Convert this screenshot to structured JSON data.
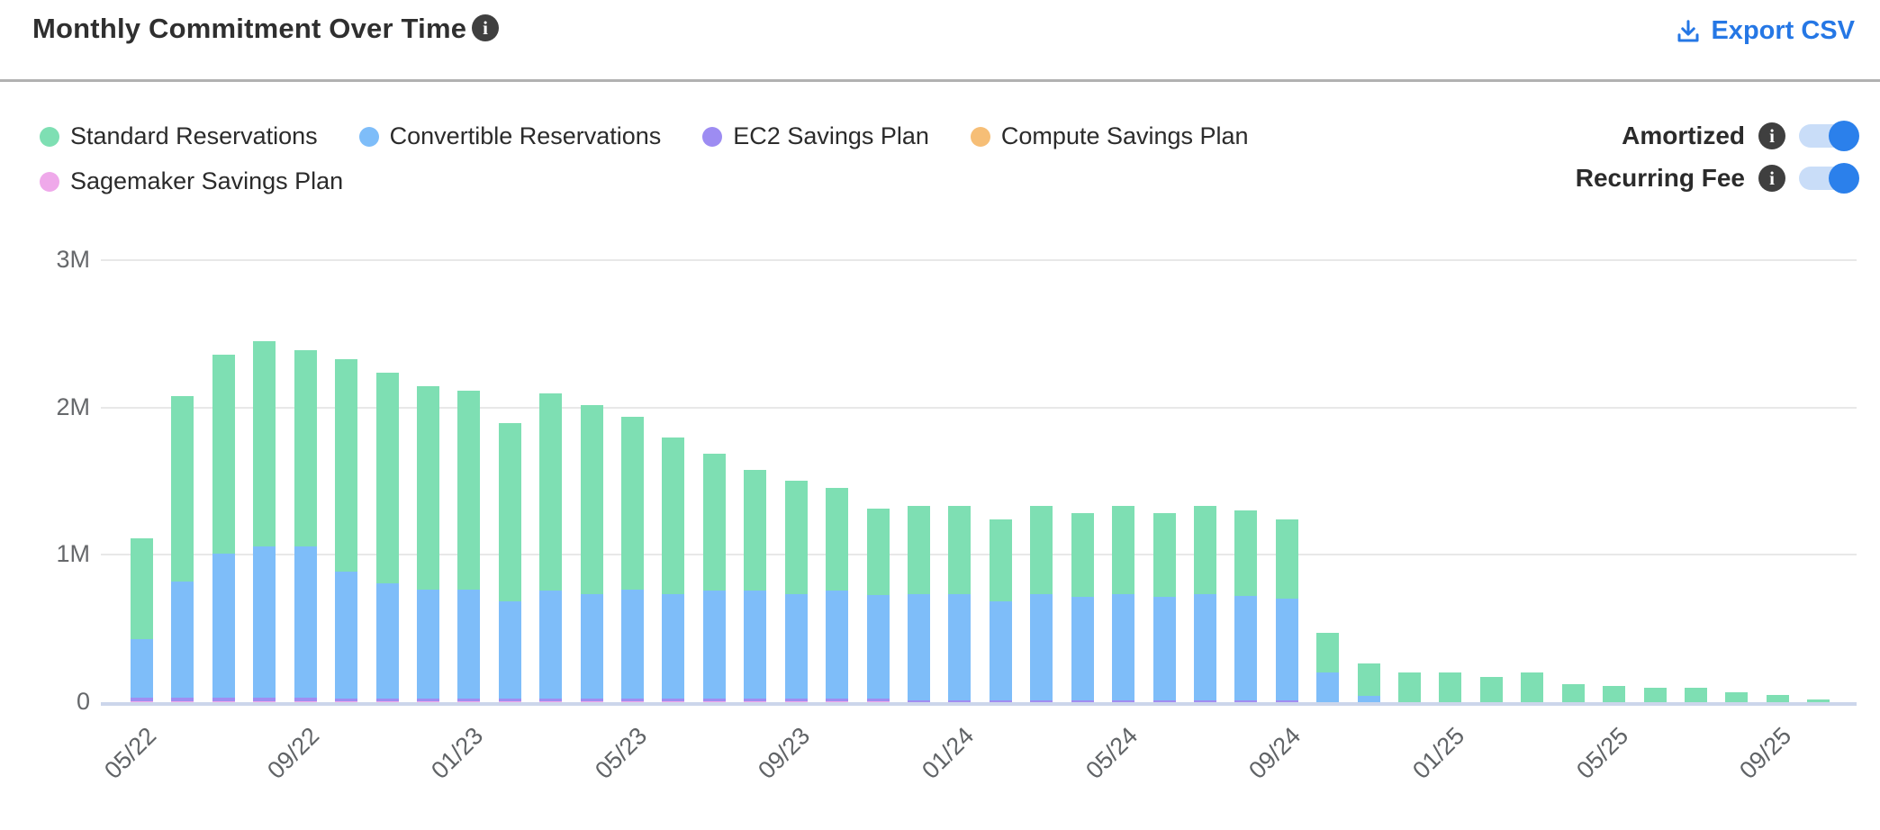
{
  "header": {
    "title": "Monthly Commitment Over Time",
    "info_icon_glyph": "i",
    "export_label": "Export CSV"
  },
  "toggles": [
    {
      "label": "Amortized",
      "state": "on"
    },
    {
      "label": "Recurring Fee",
      "state": "on"
    }
  ],
  "colors": {
    "standard": "#7EDFB3",
    "convertible": "#7EBDF9",
    "ec2": "#A08DF1",
    "compute": "#F6BE76",
    "sagemaker": "#EFA9EA",
    "accent_blue": "#2577E5",
    "gridline": "#E8E8E8",
    "axis_line": "#CCD6EB",
    "axis_text": "#66686B"
  },
  "legend": {
    "items": [
      {
        "key": "standard",
        "label": "Standard Reservations",
        "color": "#7EDFB3",
        "row": 1
      },
      {
        "key": "convertible",
        "label": "Convertible Reservations",
        "color": "#7EBDF9",
        "row": 1
      },
      {
        "key": "ec2",
        "label": "EC2 Savings Plan",
        "color": "#9D8CF2",
        "row": 1
      },
      {
        "key": "compute",
        "label": "Compute Savings Plan",
        "color": "#F6BE76",
        "row": 1
      },
      {
        "key": "sagemaker",
        "label": "Sagemaker Savings Plan",
        "color": "#EFA9EA",
        "row": 2
      }
    ]
  },
  "chart_data": {
    "type": "bar",
    "stacked": true,
    "title": "Monthly Commitment Over Time",
    "xlabel": "",
    "ylabel": "",
    "units": "millions USD",
    "ylim": [
      0,
      3.1
    ],
    "grid": true,
    "legend_position": "top-left",
    "y_ticks": [
      {
        "label": "3M",
        "value": 3
      },
      {
        "label": "2M",
        "value": 2
      },
      {
        "label": "1M",
        "value": 1
      },
      {
        "label": "0",
        "value": 0
      }
    ],
    "x_tick_labels_shown": [
      "05/22",
      "09/22",
      "01/23",
      "05/23",
      "09/23",
      "01/24",
      "05/24",
      "09/24",
      "01/25",
      "05/25",
      "09/25"
    ],
    "x_tick_every": 4,
    "categories": [
      "05/22",
      "06/22",
      "07/22",
      "08/22",
      "09/22",
      "10/22",
      "11/22",
      "12/22",
      "01/23",
      "02/23",
      "03/23",
      "04/23",
      "05/23",
      "06/23",
      "07/23",
      "08/23",
      "09/23",
      "10/23",
      "11/23",
      "12/23",
      "01/24",
      "02/24",
      "03/24",
      "04/24",
      "05/24",
      "06/24",
      "07/24",
      "08/24",
      "09/24",
      "10/24",
      "11/24",
      "12/24",
      "01/25",
      "02/25",
      "03/25",
      "04/25",
      "05/25",
      "06/25",
      "07/25",
      "08/25",
      "09/25",
      "10/25"
    ],
    "stack_order_bottom_to_top": [
      "sagemaker",
      "ec2",
      "convertible",
      "standard"
    ],
    "series": [
      {
        "key": "standard",
        "name": "Standard Reservations",
        "color": "#7EDFB3",
        "values": [
          0.68,
          1.26,
          1.35,
          1.39,
          1.33,
          1.44,
          1.43,
          1.38,
          1.35,
          1.21,
          1.34,
          1.28,
          1.17,
          1.06,
          0.93,
          0.82,
          0.77,
          0.7,
          0.59,
          0.6,
          0.6,
          0.56,
          0.6,
          0.57,
          0.6,
          0.57,
          0.6,
          0.58,
          0.54,
          0.27,
          0.22,
          0.2,
          0.2,
          0.17,
          0.2,
          0.12,
          0.11,
          0.1,
          0.1,
          0.07,
          0.05,
          0.02
        ]
      },
      {
        "key": "convertible",
        "name": "Convertible Reservations",
        "color": "#7EBDF9",
        "values": [
          0.4,
          0.79,
          0.98,
          1.03,
          1.03,
          0.86,
          0.78,
          0.74,
          0.74,
          0.66,
          0.73,
          0.71,
          0.74,
          0.71,
          0.73,
          0.73,
          0.71,
          0.73,
          0.7,
          0.72,
          0.72,
          0.67,
          0.72,
          0.7,
          0.72,
          0.7,
          0.72,
          0.71,
          0.69,
          0.2,
          0.04,
          0,
          0,
          0,
          0,
          0,
          0,
          0,
          0,
          0,
          0,
          0
        ]
      },
      {
        "key": "ec2",
        "name": "EC2 Savings Plan",
        "color": "#A08DF1",
        "values": [
          0.025,
          0.025,
          0.025,
          0.025,
          0.025,
          0.02,
          0.02,
          0.02,
          0.02,
          0.02,
          0.02,
          0.02,
          0.02,
          0.02,
          0.02,
          0.02,
          0.02,
          0.02,
          0.02,
          0.012,
          0.012,
          0.012,
          0.012,
          0.012,
          0.012,
          0.012,
          0.012,
          0.012,
          0.012,
          0,
          0,
          0,
          0,
          0,
          0,
          0,
          0,
          0,
          0,
          0,
          0,
          0
        ]
      },
      {
        "key": "compute",
        "name": "Compute Savings Plan",
        "color": "#F6BE76",
        "values": [
          0,
          0,
          0,
          0,
          0,
          0,
          0,
          0,
          0,
          0,
          0,
          0,
          0,
          0,
          0,
          0,
          0,
          0,
          0,
          0,
          0,
          0,
          0,
          0,
          0,
          0,
          0,
          0,
          0,
          0,
          0,
          0,
          0,
          0,
          0,
          0,
          0,
          0,
          0,
          0,
          0,
          0
        ]
      },
      {
        "key": "sagemaker",
        "name": "Sagemaker Savings Plan",
        "color": "#EFA9EA",
        "values": [
          0.005,
          0.005,
          0.005,
          0.005,
          0.005,
          0.005,
          0.005,
          0.005,
          0.005,
          0.005,
          0.005,
          0.005,
          0.005,
          0.005,
          0.005,
          0.005,
          0.005,
          0.005,
          0.005,
          0,
          0,
          0,
          0,
          0,
          0,
          0,
          0,
          0,
          0,
          0,
          0,
          0,
          0,
          0,
          0,
          0,
          0,
          0,
          0,
          0,
          0,
          0
        ]
      }
    ]
  }
}
